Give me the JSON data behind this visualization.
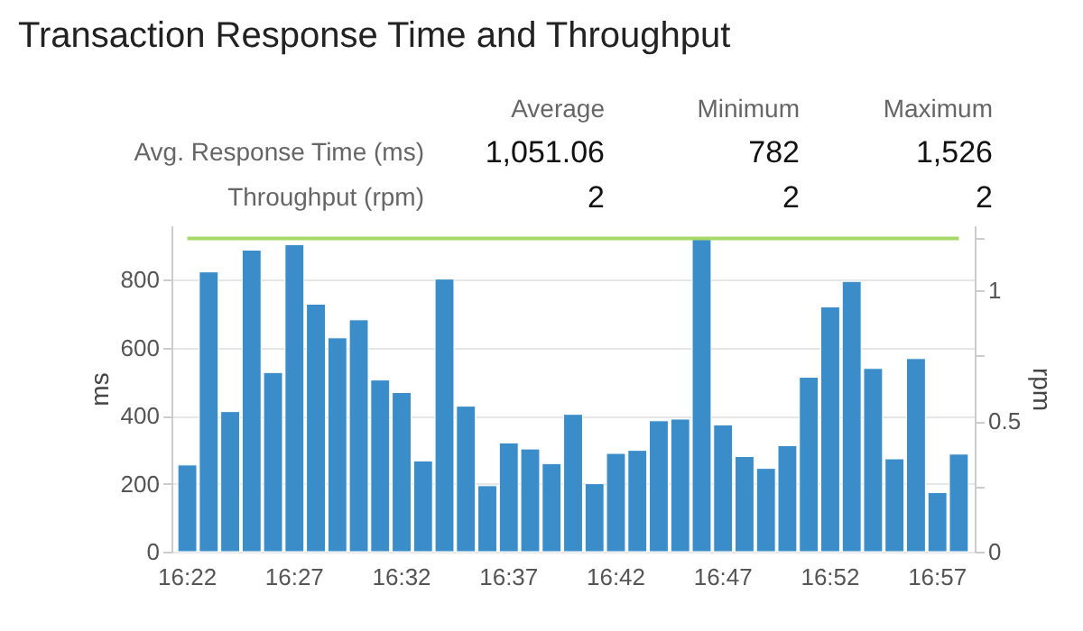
{
  "chart_data": {
    "type": "bar",
    "title": "Transaction Response Time and Throughput",
    "annotations": [
      "Average",
      "Minimum",
      "Maximum",
      "Avg. Response Time (ms)",
      "1,051.06",
      "782",
      "1,526",
      "Throughput (rpm)",
      "2",
      "2",
      "2"
    ],
    "categories": [
      "16:22",
      null,
      null,
      null,
      null,
      "16:27",
      null,
      null,
      null,
      null,
      "16:32",
      null,
      null,
      null,
      null,
      "16:37",
      null,
      null,
      null,
      null,
      "16:42",
      null,
      null,
      null,
      null,
      "16:47",
      null,
      null,
      null,
      null,
      "16:52",
      null,
      null,
      null,
      null,
      "16:57",
      null
    ],
    "series": [
      {
        "color": "#3a8dc8",
        "values": [
          255,
          823,
          412,
          887,
          527,
          903,
          728,
          629,
          682,
          505,
          468,
          267,
          802,
          428,
          194,
          320,
          302,
          259,
          404,
          200,
          289,
          298,
          385,
          390,
          919,
          373,
          280,
          245,
          312,
          513,
          720,
          795,
          539,
          273,
          568,
          174,
          287
        ]
      },
      {
        "type": "line",
        "axis": "y2",
        "color": "#a6d96a",
        "values": [
          1.2,
          1.2,
          1.2,
          1.2,
          1.2,
          1.2,
          1.2,
          1.2,
          1.2,
          1.2,
          1.2,
          1.2,
          1.2,
          1.2,
          1.2,
          1.2,
          1.2,
          1.2,
          1.2,
          1.2,
          1.2,
          1.2,
          1.2,
          1.2,
          1.2,
          1.2,
          1.2,
          1.2,
          1.2,
          1.2,
          1.2,
          1.2,
          1.2,
          1.2,
          1.2,
          1.2,
          1.2
        ]
      }
    ],
    "ylabel": "ms",
    "y2label": "rpm",
    "ylim": [
      0,
      960
    ],
    "yticks": [
      0,
      200,
      400,
      600,
      800
    ],
    "y2lim": [
      0,
      1.25
    ],
    "y2ticks": [
      0,
      {
        "value": 0.25,
        "label": null
      },
      0.5,
      {
        "value": 0.75,
        "label": null
      },
      1,
      {
        "value": 1.2,
        "label": null
      }
    ],
    "grid": "y"
  }
}
